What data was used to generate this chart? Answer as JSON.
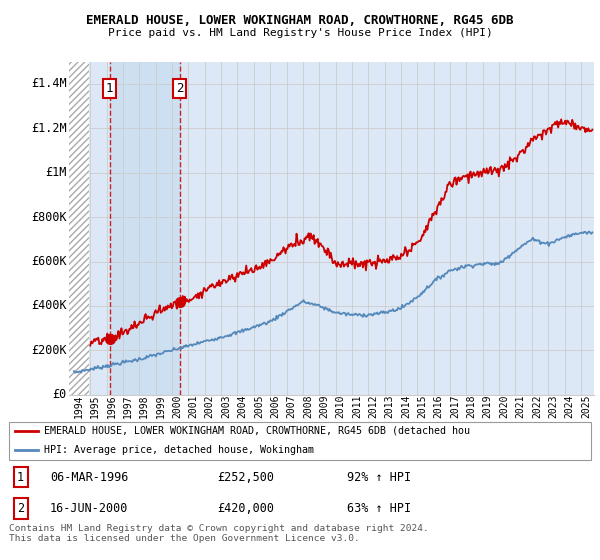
{
  "title1": "EMERALD HOUSE, LOWER WOKINGHAM ROAD, CROWTHORNE, RG45 6DB",
  "title2": "Price paid vs. HM Land Registry's House Price Index (HPI)",
  "ylim": [
    0,
    1500000
  ],
  "yticks": [
    0,
    200000,
    400000,
    600000,
    800000,
    1000000,
    1200000,
    1400000
  ],
  "ytick_labels": [
    "£0",
    "£200K",
    "£400K",
    "£600K",
    "£800K",
    "£1M",
    "£1.2M",
    "£1.4M"
  ],
  "purchase1_date": 1996.18,
  "purchase1_price": 252500,
  "purchase2_date": 2000.46,
  "purchase2_price": 420000,
  "legend_line1": "EMERALD HOUSE, LOWER WOKINGHAM ROAD, CROWTHORNE, RG45 6DB (detached hou",
  "legend_line2": "HPI: Average price, detached house, Wokingham",
  "table_row1": [
    "1",
    "06-MAR-1996",
    "£252,500",
    "92% ↑ HPI"
  ],
  "table_row2": [
    "2",
    "16-JUN-2000",
    "£420,000",
    "63% ↑ HPI"
  ],
  "footer": "Contains HM Land Registry data © Crown copyright and database right 2024.\nThis data is licensed under the Open Government Licence v3.0.",
  "line_color_red": "#cc0000",
  "line_color_blue": "#5588bb",
  "hatch_color": "#aaaaaa",
  "bg_color": "#dce8f5",
  "highlight_color": "#c8dff0",
  "grid_color": "#cccccc",
  "purchase_marker_color": "#cc0000",
  "xlim_left": 1993.7,
  "xlim_right": 2025.8,
  "hatch_end": 1994.9
}
